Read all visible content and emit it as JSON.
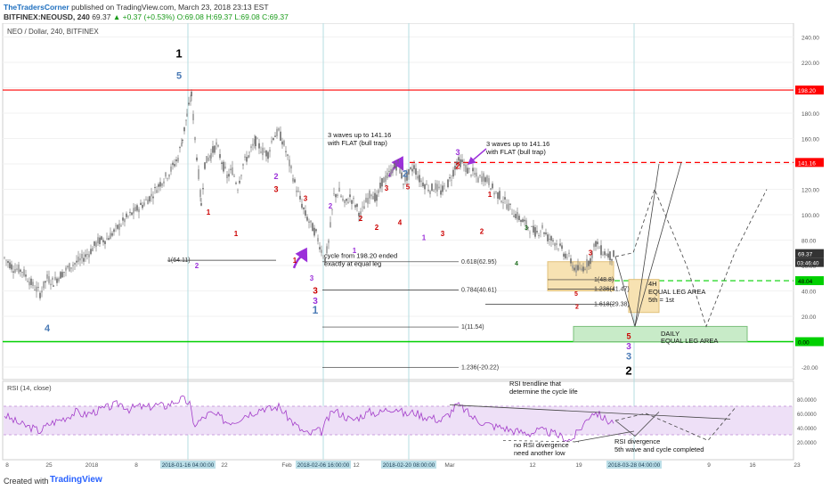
{
  "header": {
    "author": "TheTradersCorner",
    "published": "published on TradingView.com, March 23, 2018 23:13 EST",
    "symbol_line": "BITFINEX:NEOUSD, 240",
    "price": "69.37",
    "change": "▲ +0.37 (+0.53%)",
    "ohlc": "O:69.08 H:69.37 L:69.08 C:69.37"
  },
  "chart_title": "NEO / Dollar, 240, BITFINEX",
  "footer": {
    "created_with": "Created with",
    "brand": "TradingView"
  },
  "colors": {
    "candle": "#6b6b6b",
    "red_line": "#ff0000",
    "green_line": "#00d000",
    "rsi_line": "#a23bc9",
    "rsi_band": "#eee0f7",
    "box_fill": "#f7e2b2",
    "daily_box": "#c8ebc8",
    "vline": "#b6dce0",
    "highlight": "#bcdfe8"
  },
  "chart_data": {
    "type": "line",
    "title": "NEO / Dollar, 240, BITFINEX",
    "ylim": [
      -30,
      240
    ],
    "y_ticks": [
      -20,
      0,
      20,
      40,
      60,
      80,
      100,
      120,
      140,
      160,
      180,
      200,
      220,
      240
    ],
    "x_ticks": [
      "8",
      "25",
      "2018",
      "8",
      "15",
      "22",
      "Feb",
      "12",
      "26",
      "Mar",
      "12",
      "19",
      "26",
      "9",
      "16",
      "23"
    ],
    "highlighted_dates": [
      "2018-01-16 04:00:00",
      "2018-02-06 16:00:00",
      "2018-02-20 08:00:00",
      "2018-03-28 04:00:00"
    ],
    "price_labels": {
      "high": "198.20",
      "target": "141.16",
      "current": "69.37",
      "countdown": "03:46:40",
      "support": "48.04",
      "zero": "0.00"
    },
    "levels": [
      198.2,
      141.16,
      48.04,
      0
    ],
    "fib_labels": [
      "1(64.11)",
      "0.618(62.95)",
      "0.784(40.61)",
      "1(11.54)",
      "1.236(-20.22)",
      "1(48.8)",
      "1.236(41.47)",
      "1.618(29.38)"
    ],
    "wave_labels": [
      "1",
      "5",
      "4",
      "2",
      "3",
      "1",
      "1",
      "2",
      "3",
      "2",
      "3",
      "1",
      "2",
      "1",
      "2",
      "3",
      "4",
      "5",
      "2",
      "3",
      "2",
      "1",
      "1",
      "2",
      "3",
      "4",
      "3",
      "5",
      "3",
      "2"
    ],
    "annotations": [
      "3 waves up to 141.16\nwith FLAT (bull trap)",
      "3 waves up to 141.16\nwith FLAT (bull trap)",
      "cycle from 198.20 ended\nexactly at equal leg",
      "4H\nEQUAL LEG AREA\n5th = 1st",
      "DAILY\nEQUAL LEG AREA"
    ],
    "rsi": {
      "title": "RSI (14, close)",
      "ylim": [
        0,
        100
      ],
      "y_ticks": [
        20,
        40,
        60,
        80
      ],
      "tick_labels": [
        "20.0000",
        "40.0000",
        "60.0000",
        "80.0000"
      ],
      "band": [
        30,
        70
      ],
      "annotations": [
        "RSI trendline that\ndetermine the cycle life",
        "no RSI divergence\nneed another low",
        "RSI divergence\n5th wave and cycle completed"
      ]
    },
    "series": [
      {
        "name": "NEO / Dollar",
        "values": [
          [
            0,
            66
          ],
          [
            10,
            58
          ],
          [
            20,
            56
          ],
          [
            30,
            46
          ],
          [
            40,
            38
          ],
          [
            48,
            50
          ],
          [
            55,
            47
          ],
          [
            65,
            54
          ],
          [
            75,
            60
          ],
          [
            85,
            64
          ],
          [
            95,
            70
          ],
          [
            105,
            79
          ],
          [
            115,
            81
          ],
          [
            125,
            88
          ],
          [
            135,
            96
          ],
          [
            145,
            102
          ],
          [
            155,
            108
          ],
          [
            165,
            115
          ],
          [
            175,
            125
          ],
          [
            185,
            133
          ],
          [
            195,
            145
          ],
          [
            200,
            160
          ],
          [
            205,
            178
          ],
          [
            210,
            194
          ],
          [
            214,
            160
          ],
          [
            218,
            132
          ],
          [
            221,
            108
          ],
          [
            225,
            140
          ],
          [
            232,
            148
          ],
          [
            238,
            155
          ],
          [
            244,
            142
          ],
          [
            250,
            130
          ],
          [
            256,
            135
          ],
          [
            262,
            122
          ],
          [
            268,
            140
          ],
          [
            275,
            148
          ],
          [
            282,
            158
          ],
          [
            290,
            150
          ],
          [
            296,
            148
          ],
          [
            302,
            162
          ],
          [
            308,
            165
          ],
          [
            314,
            155
          ],
          [
            320,
            140
          ],
          [
            326,
            125
          ],
          [
            332,
            112
          ],
          [
            338,
            100
          ],
          [
            344,
            92
          ],
          [
            350,
            85
          ],
          [
            356,
            72
          ],
          [
            360,
            65
          ],
          [
            364,
            78
          ],
          [
            370,
            115
          ],
          [
            376,
            118
          ],
          [
            382,
            108
          ],
          [
            388,
            114
          ],
          [
            394,
            108
          ],
          [
            400,
            100
          ],
          [
            406,
            110
          ],
          [
            412,
            118
          ],
          [
            418,
            112
          ],
          [
            424,
            126
          ],
          [
            430,
            130
          ],
          [
            436,
            136
          ],
          [
            442,
            140
          ],
          [
            448,
            126
          ],
          [
            454,
            132
          ],
          [
            460,
            138
          ],
          [
            466,
            128
          ],
          [
            472,
            124
          ],
          [
            478,
            120
          ],
          [
            484,
            122
          ],
          [
            490,
            118
          ],
          [
            496,
            122
          ],
          [
            502,
            130
          ],
          [
            508,
            142
          ],
          [
            514,
            141
          ],
          [
            520,
            135
          ],
          [
            526,
            133
          ],
          [
            532,
            128
          ],
          [
            538,
            130
          ],
          [
            544,
            126
          ],
          [
            550,
            118
          ],
          [
            556,
            115
          ],
          [
            562,
            110
          ],
          [
            568,
            105
          ],
          [
            574,
            100
          ],
          [
            580,
            96
          ],
          [
            586,
            92
          ],
          [
            592,
            88
          ],
          [
            598,
            86
          ],
          [
            604,
            90
          ],
          [
            610,
            82
          ],
          [
            616,
            80
          ],
          [
            622,
            76
          ],
          [
            628,
            70
          ],
          [
            634,
            66
          ],
          [
            640,
            58
          ],
          [
            646,
            56
          ],
          [
            652,
            60
          ],
          [
            658,
            65
          ],
          [
            664,
            78
          ],
          [
            670,
            72
          ],
          [
            676,
            69
          ],
          [
            682,
            67
          ],
          [
            686,
            69.37
          ]
        ]
      },
      {
        "name": "RSI",
        "values": [
          [
            0,
            58
          ],
          [
            10,
            50
          ],
          [
            20,
            44
          ],
          [
            30,
            40
          ],
          [
            40,
            35
          ],
          [
            50,
            45
          ],
          [
            60,
            50
          ],
          [
            70,
            55
          ],
          [
            80,
            62
          ],
          [
            90,
            58
          ],
          [
            100,
            62
          ],
          [
            110,
            66
          ],
          [
            120,
            70
          ],
          [
            130,
            74
          ],
          [
            140,
            66
          ],
          [
            150,
            70
          ],
          [
            160,
            68
          ],
          [
            170,
            72
          ],
          [
            180,
            70
          ],
          [
            190,
            76
          ],
          [
            200,
            80
          ],
          [
            208,
            74
          ],
          [
            212,
            44
          ],
          [
            220,
            50
          ],
          [
            230,
            60
          ],
          [
            240,
            56
          ],
          [
            250,
            48
          ],
          [
            260,
            50
          ],
          [
            270,
            58
          ],
          [
            280,
            62
          ],
          [
            290,
            68
          ],
          [
            300,
            66
          ],
          [
            308,
            70
          ],
          [
            316,
            58
          ],
          [
            322,
            50
          ],
          [
            330,
            40
          ],
          [
            336,
            34
          ],
          [
            342,
            30
          ],
          [
            350,
            36
          ],
          [
            356,
            34
          ],
          [
            362,
            50
          ],
          [
            370,
            64
          ],
          [
            380,
            58
          ],
          [
            390,
            50
          ],
          [
            400,
            56
          ],
          [
            410,
            62
          ],
          [
            420,
            60
          ],
          [
            430,
            66
          ],
          [
            440,
            68
          ],
          [
            450,
            58
          ],
          [
            460,
            62
          ],
          [
            470,
            56
          ],
          [
            480,
            54
          ],
          [
            490,
            50
          ],
          [
            500,
            60
          ],
          [
            508,
            72
          ],
          [
            516,
            66
          ],
          [
            524,
            56
          ],
          [
            532,
            50
          ],
          [
            540,
            46
          ],
          [
            550,
            42
          ],
          [
            560,
            40
          ],
          [
            570,
            36
          ],
          [
            580,
            34
          ],
          [
            590,
            32
          ],
          [
            600,
            36
          ],
          [
            610,
            34
          ],
          [
            620,
            30
          ],
          [
            628,
            26
          ],
          [
            636,
            22
          ],
          [
            644,
            34
          ],
          [
            652,
            48
          ],
          [
            660,
            62
          ],
          [
            666,
            60
          ],
          [
            672,
            54
          ],
          [
            680,
            48
          ],
          [
            686,
            50
          ]
        ]
      }
    ]
  }
}
